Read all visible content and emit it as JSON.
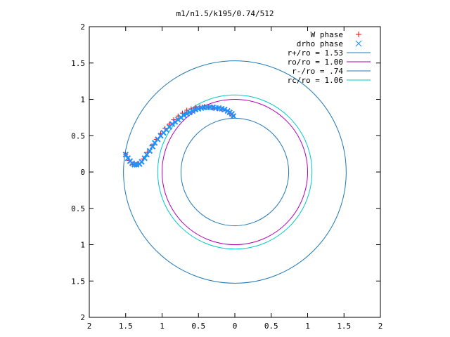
{
  "chart_data": {
    "type": "scatter",
    "title": "m1/n1.5/k195/0.74/512",
    "xlabel": "",
    "ylabel": "",
    "xlim": [
      -2,
      2
    ],
    "ylim": [
      -2,
      2
    ],
    "grid": false,
    "legend_position": "top-right",
    "x_ticks": [
      -2,
      -1.5,
      -1,
      -0.5,
      0,
      0.5,
      1,
      1.5,
      2
    ],
    "y_ticks": [
      -2,
      -1.5,
      -1,
      -0.5,
      0,
      0.5,
      1,
      1.5,
      2
    ],
    "x_tick_labels": [
      "2",
      "1.5",
      "1",
      "0.5",
      "0",
      "0.5",
      "1",
      "1.5",
      "2"
    ],
    "y_tick_labels": [
      "2",
      "1.5",
      "1",
      "0.5",
      "0",
      "0.5",
      "1",
      "1.5",
      "2"
    ],
    "series": [
      {
        "name": "W phase",
        "kind": "points",
        "marker": "+",
        "color": "#ff0000",
        "x": [
          -1.5,
          -1.45,
          -1.41,
          -1.37,
          -1.32,
          -1.26,
          -1.2,
          -1.14,
          -1.08,
          -1.02,
          -0.96,
          -0.9,
          -0.84,
          -0.78,
          -0.72,
          -0.66,
          -0.6,
          -0.54,
          -0.48,
          -0.42,
          -0.36,
          -0.3,
          -0.24,
          -0.18,
          -0.12,
          -0.07,
          -0.03
        ],
        "y": [
          0.24,
          0.16,
          0.11,
          0.1,
          0.12,
          0.18,
          0.27,
          0.36,
          0.45,
          0.53,
          0.6,
          0.66,
          0.72,
          0.77,
          0.81,
          0.85,
          0.87,
          0.89,
          0.9,
          0.9,
          0.89,
          0.88,
          0.87,
          0.86,
          0.84,
          0.81,
          0.77
        ]
      },
      {
        "name": "drho phase",
        "kind": "points",
        "marker": "x",
        "color": "#1e90ff",
        "x": [
          -1.5,
          -1.47,
          -1.44,
          -1.41,
          -1.38,
          -1.35,
          -1.31,
          -1.28,
          -1.24,
          -1.21,
          -1.17,
          -1.13,
          -1.1,
          -1.06,
          -1.02,
          -0.98,
          -0.94,
          -0.9,
          -0.86,
          -0.82,
          -0.78,
          -0.74,
          -0.7,
          -0.66,
          -0.62,
          -0.58,
          -0.54,
          -0.5,
          -0.46,
          -0.42,
          -0.38,
          -0.34,
          -0.3,
          -0.26,
          -0.22,
          -0.18,
          -0.14,
          -0.1,
          -0.07,
          -0.04,
          -0.02
        ],
        "y": [
          0.24,
          0.19,
          0.15,
          0.12,
          0.1,
          0.1,
          0.11,
          0.14,
          0.19,
          0.24,
          0.29,
          0.35,
          0.4,
          0.45,
          0.5,
          0.54,
          0.58,
          0.62,
          0.66,
          0.69,
          0.72,
          0.75,
          0.78,
          0.8,
          0.82,
          0.84,
          0.86,
          0.87,
          0.88,
          0.89,
          0.89,
          0.89,
          0.89,
          0.88,
          0.88,
          0.87,
          0.86,
          0.84,
          0.82,
          0.8,
          0.77
        ]
      },
      {
        "name": "r+/ro = 1.53",
        "kind": "circle",
        "radius": 1.53,
        "color": "#1f78b4"
      },
      {
        "name": "ro/ro = 1.00",
        "kind": "circle",
        "radius": 1.0,
        "color": "#b000b0"
      },
      {
        "name": "r-/ro = .74",
        "kind": "circle",
        "radius": 0.74,
        "color": "#1f78b4"
      },
      {
        "name": "rc/ro = 1.06",
        "kind": "circle",
        "radius": 1.06,
        "color": "#00c8c8"
      }
    ]
  }
}
